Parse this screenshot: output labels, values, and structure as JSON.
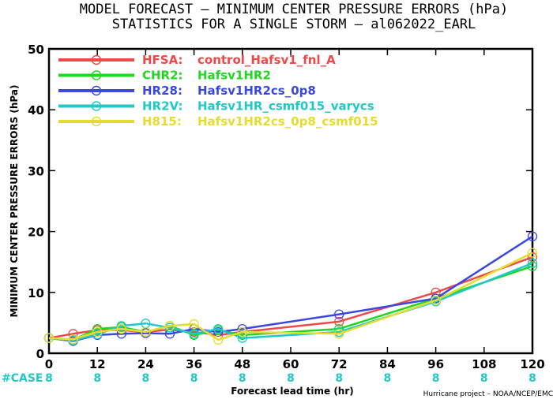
{
  "header": {
    "title_line1": "MODEL FORECAST – MINIMUM CENTER PRESSURE ERRORS (hPa)",
    "title_line2": "STATISTICS FOR A SINGLE STORM – al062022_EARL"
  },
  "footer": {
    "case_label": "#CASE",
    "credit": "Hurricane project – NOAA/NCEP/EMC"
  },
  "chart_data": {
    "type": "line",
    "xlabel": "Forecast lead time (hr)",
    "ylabel": "MINIMUM CENTER PRESSURE ERRORS (hPa)",
    "xlim": [
      0,
      120
    ],
    "ylim": [
      0,
      50
    ],
    "x_ticks": [
      "0",
      "12",
      "24",
      "36",
      "48",
      "60",
      "72",
      "84",
      "96",
      "108",
      "120"
    ],
    "y_ticks": [
      "0",
      "10",
      "20",
      "30",
      "40",
      "50"
    ],
    "case_counts": [
      "8",
      "8",
      "8",
      "8",
      "8",
      "8",
      "8",
      "8",
      "8",
      "8",
      "8"
    ],
    "legend_position": "top-left",
    "series": [
      {
        "name": "HFSA:",
        "desc": "control_Hafsv1_fnl_A",
        "color": "#f04848",
        "x": [
          0,
          6,
          12,
          18,
          24,
          30,
          36,
          42,
          48,
          72,
          96,
          120
        ],
        "y": [
          2.5,
          3.2,
          3.8,
          3.8,
          3.5,
          3.9,
          3.5,
          3.0,
          3.5,
          5.2,
          10.0,
          15.8
        ]
      },
      {
        "name": "CHR2:",
        "desc": "Hafsv1HR2",
        "color": "#20d820",
        "x": [
          0,
          6,
          12,
          18,
          24,
          30,
          36,
          42,
          48,
          72,
          96,
          120
        ],
        "y": [
          2.5,
          2.2,
          4.0,
          4.3,
          3.5,
          4.5,
          3.0,
          3.8,
          3.0,
          4.0,
          9.0,
          14.3
        ]
      },
      {
        "name": "HR28:",
        "desc": "Hafsv1HR2cs_0p8",
        "color": "#3a48e0",
        "x": [
          0,
          6,
          12,
          18,
          24,
          30,
          36,
          42,
          48,
          72,
          96,
          120
        ],
        "y": [
          2.5,
          2.0,
          3.0,
          3.2,
          3.3,
          3.2,
          4.0,
          3.5,
          4.0,
          6.4,
          9.0,
          19.2
        ]
      },
      {
        "name": "HR2V:",
        "desc": "Hafsv1HR_csmf015_varycs",
        "color": "#20c8c8",
        "x": [
          0,
          6,
          12,
          18,
          24,
          30,
          36,
          42,
          48,
          72,
          96,
          120
        ],
        "y": [
          2.5,
          2.1,
          3.1,
          4.5,
          4.9,
          4.2,
          3.2,
          4.0,
          2.5,
          3.5,
          8.5,
          14.8
        ]
      },
      {
        "name": "H815:",
        "desc": "Hafsv1HR2cs_0p8_csmf015",
        "color": "#e6dc30",
        "x": [
          0,
          6,
          12,
          18,
          24,
          30,
          36,
          42,
          48,
          72,
          96,
          120
        ],
        "y": [
          2.5,
          2.3,
          3.5,
          4.0,
          3.5,
          4.5,
          4.8,
          2.2,
          3.5,
          3.2,
          8.7,
          16.5
        ]
      }
    ]
  }
}
